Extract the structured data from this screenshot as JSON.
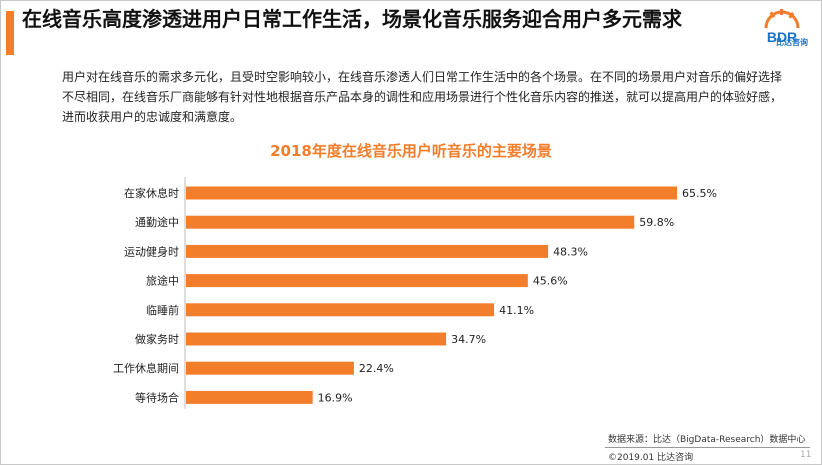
{
  "header": {
    "title": "在线音乐高度渗透进用户日常工作生活，场景化音乐服务迎合用户多元需求",
    "logo_text": "比达咨询",
    "logo_letters": "BDR"
  },
  "intro": {
    "text": "用户对在线音乐的需求多元化，且受时空影响较小，在线音乐渗透人们日常工作生活中的各个场景。在不同的场景用户对音乐的偏好选择不尽相同，在线音乐厂商能够有针对性地根据音乐产品本身的调性和应用场景进行个性化音乐内容的推送，就可以提高用户的体验好感，进而收获用户的忠诚度和满意度。"
  },
  "chart_data": {
    "type": "bar",
    "orientation": "horizontal",
    "title": "2018年度在线音乐用户听音乐的主要场景",
    "categories": [
      "在家休息时",
      "通勤途中",
      "运动健身时",
      "旅途中",
      "临睡前",
      "做家务时",
      "工作休息期间",
      "等待场合"
    ],
    "values": [
      65.5,
      59.8,
      48.3,
      45.6,
      41.1,
      34.7,
      22.4,
      16.9
    ],
    "value_labels": [
      "65.5%",
      "59.8%",
      "48.3%",
      "45.6%",
      "41.1%",
      "34.7%",
      "22.4%",
      "16.9%"
    ],
    "unit": "%",
    "xlim": [
      0,
      70
    ],
    "bar_color": "#f27e2c",
    "grid": false,
    "legend": "none"
  },
  "footer": {
    "source": "数据来源：比达（BigData-Research）数据中心",
    "copyright": "©2019.01 比达咨询",
    "page": "11"
  }
}
